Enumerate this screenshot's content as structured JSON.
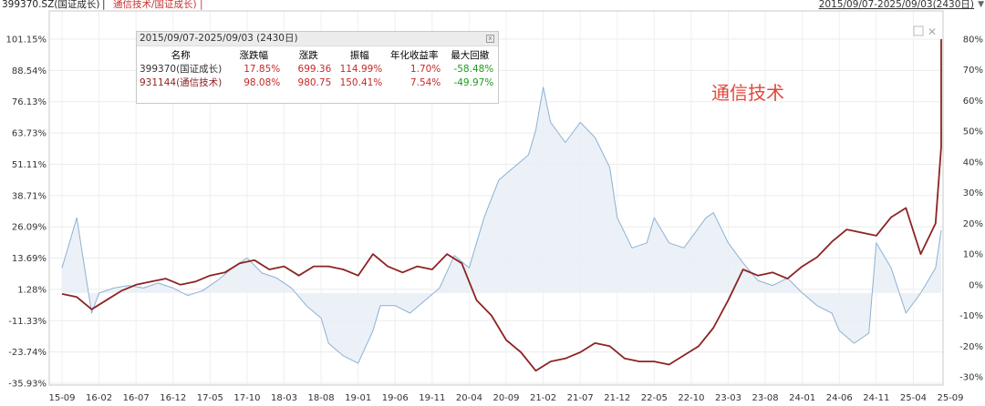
{
  "header": {
    "title_code": "399370.SZ(国证成长)",
    "title_sep": " | ",
    "title_ratio": "通信技术/国证成长) |",
    "date_range": "2015/09/07-2025/09/03(2430日)",
    "dropdown_icon": "triangle-down-icon"
  },
  "stats": {
    "title": "2015/09/07-2025/09/03 (2430日)",
    "close_label": "x",
    "headers": [
      "名称",
      "涨跌幅",
      "涨跌",
      "振幅",
      "年化收益率",
      "最大回撤"
    ],
    "rows": [
      {
        "name": "399370(国证成长)",
        "pct": "17.85%",
        "chg": "699.36",
        "amp": "114.99%",
        "ann": "1.70%",
        "dd": "-58.48%"
      },
      {
        "name": "931144(通信技术)",
        "pct": "98.08%",
        "chg": "980.75",
        "amp": "150.41%",
        "ann": "7.54%",
        "dd": "-49.97%"
      }
    ]
  },
  "annotation": "通信技术",
  "chart_data": {
    "type": "line",
    "left_axis": {
      "ticks": [
        "101.15%",
        "88.54%",
        "76.13%",
        "63.73%",
        "51.11%",
        "38.71%",
        "26.09%",
        "13.69%",
        "1.28%",
        "-11.33%",
        "-23.74%",
        "-35.93%"
      ],
      "range": [
        -35.93,
        101.15
      ]
    },
    "right_axis": {
      "ticks": [
        "80%",
        "70%",
        "60%",
        "50%",
        "40%",
        "30%",
        "20%",
        "10%",
        "0%",
        "-10%",
        "-20%",
        "-30%"
      ],
      "range": [
        -30,
        80
      ]
    },
    "x_ticks": [
      "15-09",
      "16-02",
      "16-07",
      "16-12",
      "17-05",
      "17-10",
      "18-03",
      "18-08",
      "19-01",
      "19-06",
      "19-11",
      "20-04",
      "20-09",
      "21-02",
      "21-07",
      "21-12",
      "22-05",
      "22-10",
      "23-03",
      "23-08",
      "24-01",
      "24-06",
      "24-11",
      "25-04",
      "25-09"
    ],
    "grid": true,
    "series": [
      {
        "name": "399370(国证成长)",
        "axis": "left",
        "color": "#8eb1d4",
        "fill": "#e7eef6",
        "x": [
          "15-09",
          "15-11",
          "16-01",
          "16-02",
          "16-04",
          "16-06",
          "16-08",
          "16-10",
          "16-12",
          "17-02",
          "17-04",
          "17-06",
          "17-08",
          "17-10",
          "17-12",
          "18-02",
          "18-04",
          "18-06",
          "18-08",
          "18-09",
          "18-11",
          "19-01",
          "19-03",
          "19-04",
          "19-06",
          "19-08",
          "19-10",
          "19-12",
          "20-02",
          "20-04",
          "20-06",
          "20-08",
          "20-10",
          "20-12",
          "21-01",
          "21-02",
          "21-03",
          "21-05",
          "21-07",
          "21-09",
          "21-11",
          "21-12",
          "22-02",
          "22-04",
          "22-05",
          "22-07",
          "22-09",
          "22-10",
          "22-12",
          "23-01",
          "23-03",
          "23-05",
          "23-07",
          "23-09",
          "23-11",
          "24-01",
          "24-03",
          "24-05",
          "24-06",
          "24-08",
          "24-10",
          "24-11",
          "25-01",
          "25-03",
          "25-05",
          "25-07",
          "25-09"
        ],
        "y": [
          10,
          30,
          -8,
          0,
          2,
          3,
          2,
          4,
          2,
          -1,
          1,
          5,
          10,
          14,
          8,
          6,
          2,
          -5,
          -10,
          -20,
          -25,
          -28,
          -15,
          -5,
          -5,
          -8,
          -3,
          2,
          15,
          10,
          30,
          45,
          50,
          55,
          65,
          82,
          68,
          60,
          68,
          62,
          50,
          30,
          18,
          20,
          30,
          20,
          18,
          22,
          30,
          32,
          20,
          12,
          5,
          3,
          6,
          0,
          -5,
          -8,
          -15,
          -20,
          -16,
          20,
          10,
          -8,
          0,
          10,
          25
        ]
      },
      {
        "name": "931144(通信技术)",
        "axis": "right",
        "color": "#8e2323",
        "x": [
          "15-09",
          "15-11",
          "16-01",
          "16-03",
          "16-05",
          "16-07",
          "16-09",
          "16-11",
          "17-01",
          "17-03",
          "17-05",
          "17-07",
          "17-09",
          "17-11",
          "18-01",
          "18-03",
          "18-05",
          "18-07",
          "18-09",
          "18-11",
          "19-01",
          "19-03",
          "19-05",
          "19-07",
          "19-09",
          "19-11",
          "20-01",
          "20-03",
          "20-05",
          "20-07",
          "20-09",
          "20-11",
          "21-01",
          "21-03",
          "21-05",
          "21-07",
          "21-09",
          "21-11",
          "22-01",
          "22-03",
          "22-05",
          "22-07",
          "22-09",
          "22-11",
          "23-01",
          "23-03",
          "23-05",
          "23-07",
          "23-09",
          "23-11",
          "24-01",
          "24-03",
          "24-05",
          "24-07",
          "24-09",
          "24-11",
          "25-01",
          "25-03",
          "25-05",
          "25-07",
          "25-08",
          "25-09"
        ],
        "y": [
          -3,
          -4,
          -8,
          -5,
          -2,
          0,
          1,
          2,
          0,
          1,
          3,
          4,
          7,
          8,
          5,
          6,
          3,
          6,
          6,
          5,
          3,
          10,
          6,
          4,
          6,
          5,
          10,
          7,
          -5,
          -10,
          -18,
          -22,
          -28,
          -25,
          -24,
          -22,
          -19,
          -20,
          -24,
          -25,
          -25,
          -26,
          -23,
          -20,
          -14,
          -5,
          5,
          3,
          4,
          2,
          6,
          9,
          14,
          18,
          17,
          16,
          22,
          25,
          10,
          20,
          45,
          80
        ]
      }
    ]
  }
}
